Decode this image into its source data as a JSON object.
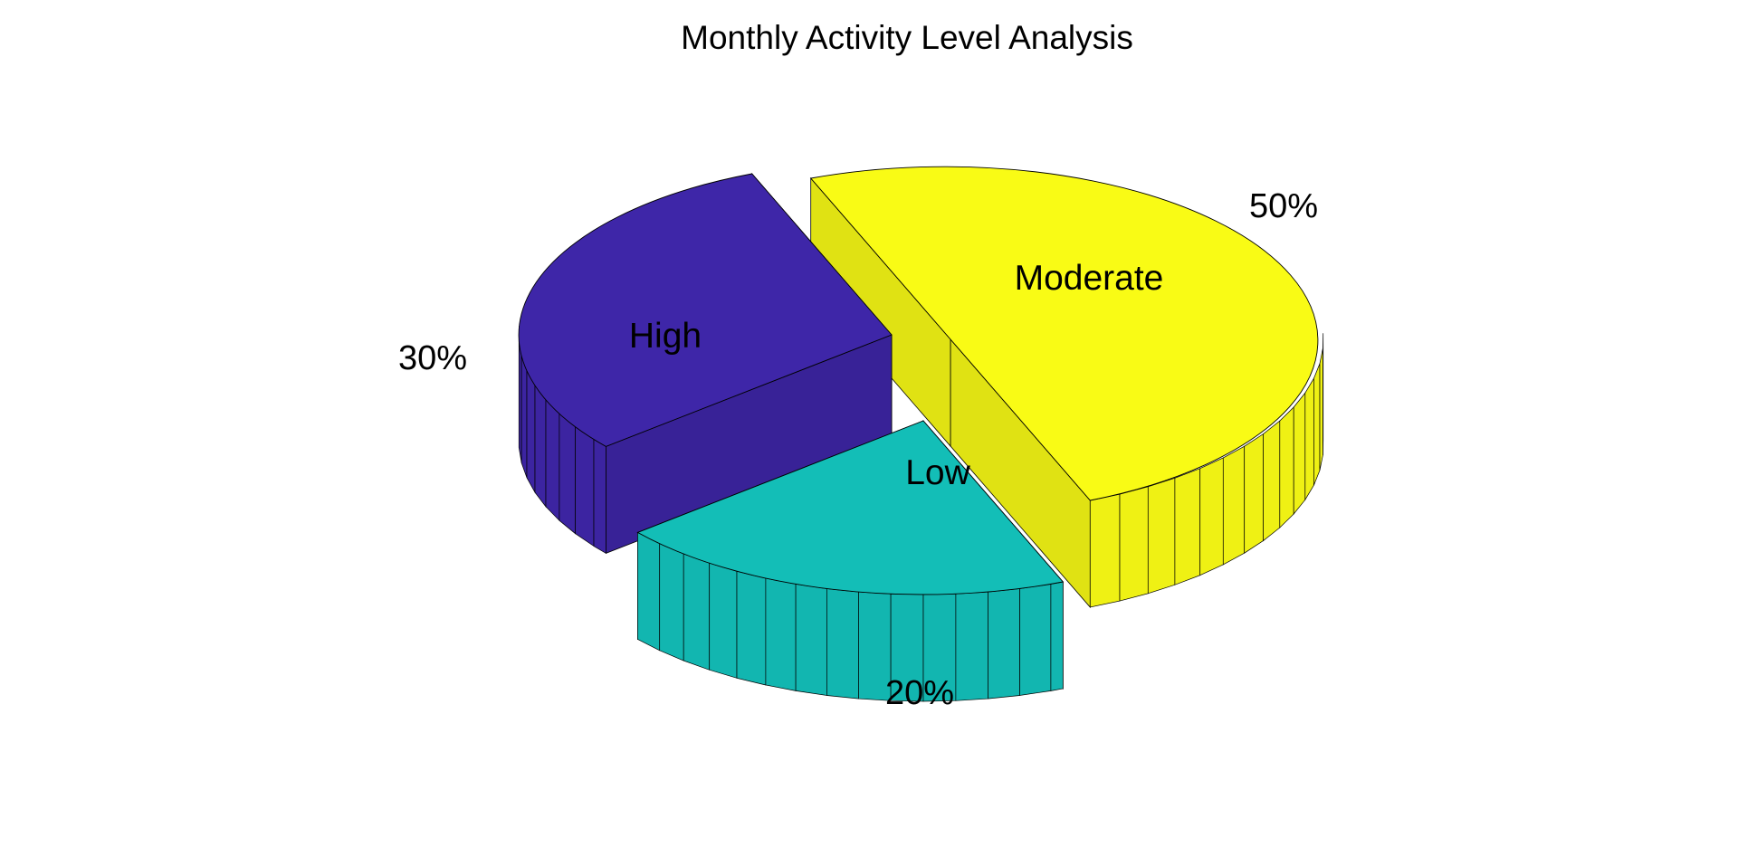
{
  "chart_data": {
    "type": "pie",
    "title": "Monthly Activity Level Analysis",
    "three_d": true,
    "exploded": true,
    "slices": [
      {
        "label": "High",
        "value": 30,
        "percent_label": "30%",
        "color": "#3e26a8"
      },
      {
        "label": "Moderate",
        "value": 50,
        "percent_label": "50%",
        "color": "#f9fb15"
      },
      {
        "label": "Low",
        "value": 20,
        "percent_label": "20%",
        "color": "#13beb7"
      }
    ],
    "legend": "none",
    "grid": false
  }
}
